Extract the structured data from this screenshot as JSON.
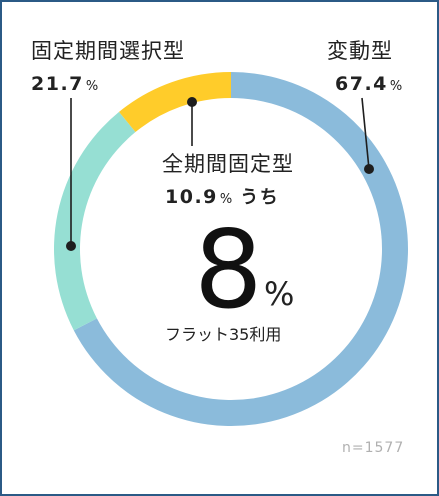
{
  "chart_data": {
    "type": "pie",
    "categories": [
      "変動型",
      "固定期間選択型",
      "全期間固定型"
    ],
    "values": [
      67.4,
      21.7,
      10.9
    ],
    "unit": "%",
    "colors": [
      "#8bbbdb",
      "#96dfd3",
      "#ffcc2a"
    ],
    "center_label": "うち",
    "center_value": "8",
    "center_unit": "%",
    "center_caption": "フラット35利用",
    "sample_size": "n=1577"
  },
  "labels": {
    "hendou": {
      "name": "変動型",
      "value": "67.4",
      "unit": "%"
    },
    "kotei_kikan": {
      "name": "固定期間選択型",
      "value": "21.7",
      "unit": "%"
    },
    "zen_kikan": {
      "name": "全期間固定型",
      "value": "10.9",
      "unit": "%",
      "suffix": "うち"
    }
  }
}
